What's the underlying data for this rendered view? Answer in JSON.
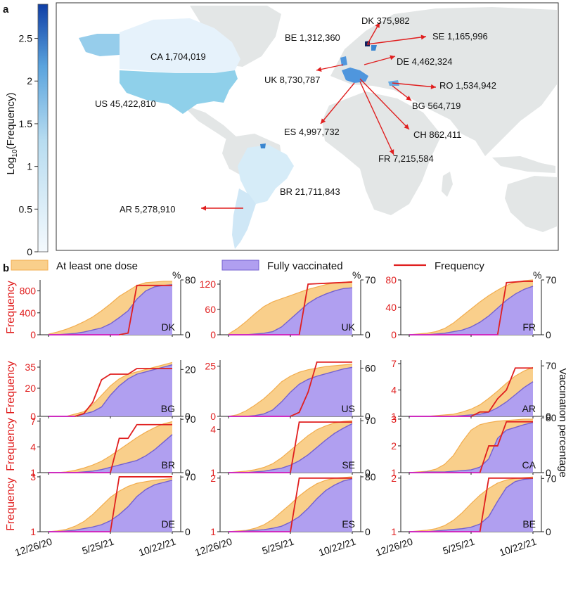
{
  "panel_labels": {
    "a": "a",
    "b": "b"
  },
  "colorbar": {
    "title": "Log",
    "title_sub": "10",
    "title_tail": "(Frequency)",
    "ticks": [
      "0",
      "0.5",
      "1",
      "1.5",
      "2",
      "2.5"
    ]
  },
  "map_labels": [
    {
      "text": "DK 375,982"
    },
    {
      "text": "BE 1,312,360"
    },
    {
      "text": "SE 1,165,996"
    },
    {
      "text": "CA 1,704,019"
    },
    {
      "text": "DE 4,462,324"
    },
    {
      "text": "UK 8,730,787"
    },
    {
      "text": "RO 1,534,942"
    },
    {
      "text": "US 45,422,810"
    },
    {
      "text": "BG 564,719"
    },
    {
      "text": "ES 4,997,732"
    },
    {
      "text": "CH 862,411"
    },
    {
      "text": "FR 7,215,584"
    },
    {
      "text": "BR 21,711,843"
    },
    {
      "text": "AR 5,278,910"
    }
  ],
  "legend": {
    "at_least_one": "At least one dose",
    "fully": "Fully vaccinated",
    "frequency": "Frequency"
  },
  "y_left_title": "Frequency",
  "y_right_title": "Vaccination percentage",
  "pct_symbol": "%",
  "x_ticks": [
    "12/26/20",
    "5/25/21",
    "10/22/21"
  ],
  "colors": {
    "frequency_line": "#e01f1f",
    "frequency_low": "#cc2ad0",
    "one_dose_fill": "#f9cf8b",
    "one_dose_line": "#f2ad4f",
    "fully_fill": "#b09ff0",
    "fully_line": "#7461cf",
    "map_bg": "#e3e6e6",
    "colorbar_low": "#f2f8fd",
    "colorbar_high": "#0f3ea6"
  },
  "chart_data": [
    {
      "type": "area",
      "country": "DK",
      "freq_ticks": [
        "0",
        "400",
        "800"
      ],
      "freq_max": 1000,
      "pct_ticks": [
        "0",
        "80"
      ],
      "pct_max": 80,
      "freq": [
        0,
        0,
        0,
        0,
        0,
        0,
        0,
        0,
        0,
        30,
        900,
        900,
        900,
        900,
        900
      ],
      "one_dose": [
        1,
        4,
        8,
        13,
        19,
        26,
        35,
        45,
        56,
        64,
        72,
        76,
        77,
        78,
        78
      ],
      "fully": [
        0,
        0,
        1,
        2,
        4,
        7,
        10,
        16,
        25,
        35,
        52,
        64,
        70,
        72,
        73
      ]
    },
    {
      "type": "area",
      "country": "UK",
      "freq_ticks": [
        "0",
        "60",
        "120"
      ],
      "freq_max": 130,
      "pct_ticks": [
        "0",
        "70"
      ],
      "pct_max": 70,
      "freq": [
        0,
        0,
        0,
        0,
        0,
        0,
        0,
        0,
        0,
        120,
        121,
        122,
        123,
        124,
        125
      ],
      "one_dose": [
        1,
        8,
        17,
        27,
        36,
        42,
        46,
        50,
        54,
        58,
        61,
        64,
        66,
        67,
        68
      ],
      "fully": [
        0,
        0,
        0,
        1,
        2,
        4,
        10,
        20,
        30,
        40,
        47,
        52,
        56,
        59,
        60
      ]
    },
    {
      "type": "area",
      "country": "FR",
      "freq_ticks": [
        "0",
        "40",
        "80"
      ],
      "freq_max": 80,
      "pct_ticks": [
        "0",
        "70"
      ],
      "pct_max": 70,
      "freq": [
        0,
        0,
        0,
        0,
        0,
        0,
        0,
        0,
        0,
        0,
        0,
        76,
        77,
        78,
        78
      ],
      "one_dose": [
        0,
        1,
        2,
        4,
        8,
        15,
        24,
        33,
        42,
        50,
        57,
        63,
        67,
        69,
        70
      ],
      "fully": [
        0,
        0,
        0,
        1,
        2,
        4,
        6,
        10,
        16,
        24,
        34,
        44,
        52,
        58,
        62
      ]
    },
    {
      "type": "area",
      "country": "BG",
      "freq_ticks": [
        "0",
        "20",
        "35"
      ],
      "freq_max": 40,
      "pct_ticks": [
        "0",
        "20"
      ],
      "pct_max": 24,
      "freq": [
        0,
        0,
        0,
        0,
        2,
        10,
        26,
        30,
        30,
        30,
        34,
        34,
        34,
        34,
        34
      ],
      "one_dose": [
        0,
        0,
        0,
        1,
        2,
        5,
        9,
        13,
        16,
        18,
        19,
        20,
        21,
        22,
        23
      ],
      "fully": [
        0,
        0,
        0,
        0,
        1,
        2,
        4,
        9,
        13,
        16,
        18,
        19,
        20,
        21,
        22
      ]
    },
    {
      "type": "area",
      "country": "US",
      "freq_ticks": [
        "0",
        "25"
      ],
      "freq_max": 28,
      "pct_ticks": [
        "0",
        "60"
      ],
      "pct_max": 70,
      "freq": [
        0,
        0,
        0,
        0,
        0,
        0,
        0,
        0,
        2,
        12,
        27,
        27,
        27,
        27,
        27
      ],
      "one_dose": [
        0,
        2,
        7,
        14,
        22,
        32,
        43,
        50,
        55,
        58,
        60,
        62,
        63,
        64,
        65
      ],
      "fully": [
        0,
        0,
        0,
        1,
        3,
        8,
        18,
        30,
        40,
        46,
        50,
        53,
        56,
        59,
        61
      ]
    },
    {
      "type": "area",
      "country": "AR",
      "freq_ticks": [
        "1",
        "4",
        "7"
      ],
      "freq_max": 7.4,
      "pct_ticks": [
        "0",
        "70"
      ],
      "pct_max": 78,
      "freq": [
        1,
        1,
        1,
        1,
        1,
        1,
        1,
        1,
        1.5,
        1.5,
        3,
        4,
        6.5,
        6.5,
        6.5
      ],
      "one_dose": [
        0,
        0,
        0,
        1,
        2,
        3,
        6,
        10,
        16,
        25,
        35,
        46,
        56,
        63,
        68
      ],
      "fully": [
        0,
        0,
        0,
        0,
        0,
        0,
        1,
        2,
        3,
        6,
        12,
        20,
        30,
        40,
        48
      ]
    },
    {
      "type": "area",
      "country": "BR",
      "freq_ticks": [
        "1",
        "4",
        "7"
      ],
      "freq_max": 7.4,
      "pct_ticks": [
        "0",
        "70"
      ],
      "pct_max": 72,
      "freq": [
        1,
        1,
        1,
        1,
        1,
        1,
        1,
        1,
        5,
        5,
        6.6,
        6.6,
        6.6,
        6.6,
        6.6
      ],
      "one_dose": [
        0,
        0,
        1,
        3,
        6,
        10,
        15,
        22,
        30,
        38,
        46,
        53,
        59,
        64,
        67
      ],
      "fully": [
        0,
        0,
        0,
        0,
        1,
        2,
        4,
        7,
        10,
        13,
        16,
        22,
        30,
        40,
        50
      ]
    },
    {
      "type": "area",
      "country": "SE",
      "freq_ticks": [
        "1",
        "4"
      ],
      "freq_max": 4.8,
      "pct_ticks": [
        "0",
        "70"
      ],
      "pct_max": 74,
      "freq": [
        1,
        1,
        1,
        1,
        1,
        1,
        1,
        1,
        4.5,
        4.5,
        4.5,
        4.5,
        4.5,
        4.5,
        4.5
      ],
      "one_dose": [
        0,
        1,
        2,
        4,
        7,
        12,
        20,
        30,
        40,
        50,
        58,
        63,
        67,
        69,
        70
      ],
      "fully": [
        0,
        0,
        0,
        1,
        2,
        4,
        6,
        10,
        16,
        24,
        34,
        44,
        53,
        60,
        66
      ]
    },
    {
      "type": "area",
      "country": "CA",
      "freq_ticks": [
        "1",
        "2",
        "3"
      ],
      "freq_max": 3.05,
      "pct_ticks": [
        "0",
        "80"
      ],
      "pct_max": 80,
      "freq": [
        1,
        1,
        1,
        1,
        1,
        1,
        1,
        1,
        1,
        2,
        2,
        2.9,
        2.9,
        2.9,
        2.9
      ],
      "one_dose": [
        0,
        1,
        2,
        5,
        12,
        25,
        45,
        62,
        70,
        73,
        75,
        76,
        77,
        78,
        78
      ],
      "fully": [
        0,
        0,
        1,
        1,
        1,
        2,
        3,
        4,
        8,
        20,
        50,
        62,
        66,
        70,
        73
      ]
    },
    {
      "type": "area",
      "country": "DE",
      "freq_ticks": [
        "1",
        "3"
      ],
      "freq_max": 3.05,
      "pct_ticks": [
        "0",
        "70"
      ],
      "pct_max": 72,
      "freq": [
        1,
        1,
        1,
        1,
        1,
        1,
        1,
        1,
        3,
        3,
        3,
        3,
        3,
        3,
        3
      ],
      "one_dose": [
        0,
        1,
        3,
        7,
        13,
        22,
        33,
        44,
        52,
        58,
        62,
        64,
        66,
        67,
        68
      ],
      "fully": [
        0,
        0,
        1,
        2,
        4,
        6,
        9,
        14,
        22,
        32,
        45,
        54,
        60,
        63,
        66
      ]
    },
    {
      "type": "area",
      "country": "ES",
      "freq_ticks": [
        "1",
        "2"
      ],
      "freq_max": 2.05,
      "pct_ticks": [
        "0",
        "80"
      ],
      "pct_max": 82,
      "freq": [
        1,
        1,
        1,
        1,
        1,
        1,
        1,
        1,
        2,
        2,
        2,
        2,
        2,
        2,
        2
      ],
      "one_dose": [
        0,
        1,
        2,
        5,
        10,
        18,
        29,
        40,
        52,
        62,
        70,
        75,
        78,
        79,
        80
      ],
      "fully": [
        0,
        0,
        1,
        2,
        3,
        5,
        8,
        14,
        22,
        34,
        48,
        60,
        68,
        74,
        77
      ]
    },
    {
      "type": "area",
      "country": "BE",
      "freq_ticks": [
        "1",
        "2"
      ],
      "freq_max": 2.05,
      "pct_ticks": [
        "0",
        "70"
      ],
      "pct_max": 74,
      "freq": [
        1,
        1,
        1,
        1,
        1,
        1,
        1,
        1,
        1,
        2,
        2,
        2,
        2,
        2,
        2
      ],
      "one_dose": [
        0,
        1,
        2,
        4,
        8,
        15,
        25,
        37,
        48,
        57,
        64,
        68,
        70,
        71,
        72
      ],
      "fully": [
        0,
        0,
        0,
        1,
        2,
        3,
        4,
        6,
        10,
        20,
        40,
        58,
        66,
        69,
        70
      ]
    }
  ]
}
